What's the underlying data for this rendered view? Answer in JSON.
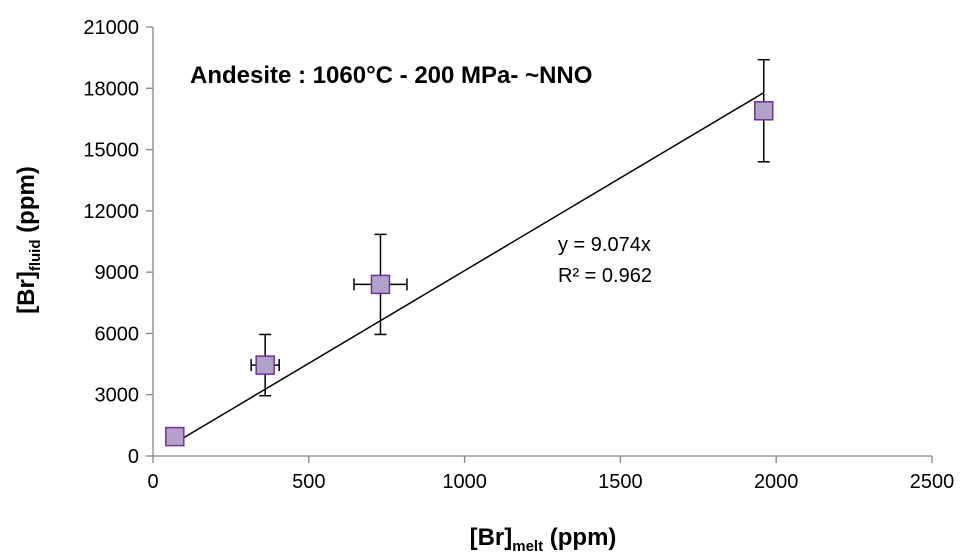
{
  "chart_data": {
    "type": "scatter",
    "annotation_title": "Andesite : 1060°C - 200 MPa- ~NNO",
    "equation": "y = 9.074x",
    "r_squared": "R² = 0.962",
    "xlabel": {
      "main": "[Br]",
      "sub": "melt",
      "suffix": " (ppm)"
    },
    "ylabel": {
      "main": "[Br]",
      "sub": "fluid",
      "suffix": " (ppm)"
    },
    "xlim": [
      0,
      2500
    ],
    "ylim": [
      0,
      21000
    ],
    "x_ticks": [
      "0",
      "500",
      "1000",
      "1500",
      "2000",
      "2500"
    ],
    "y_ticks": [
      "0",
      "3000",
      "6000",
      "9000",
      "12000",
      "15000",
      "18000",
      "21000"
    ],
    "grid": false,
    "marker_fill": "#b3a2c7",
    "marker_stroke": "#7030a0",
    "points": [
      {
        "x": 70,
        "y": 950,
        "xerr": 0,
        "yerr": 0
      },
      {
        "x": 360,
        "y": 4450,
        "xerr": 45,
        "yerr": 1500
      },
      {
        "x": 730,
        "y": 8400,
        "xerr": 85,
        "yerr": 2450
      },
      {
        "x": 1960,
        "y": 16900,
        "xerr": 0,
        "yerr": 2500
      }
    ],
    "trendline": {
      "slope": 9.074,
      "x_start": 70,
      "x_end": 1960
    }
  }
}
